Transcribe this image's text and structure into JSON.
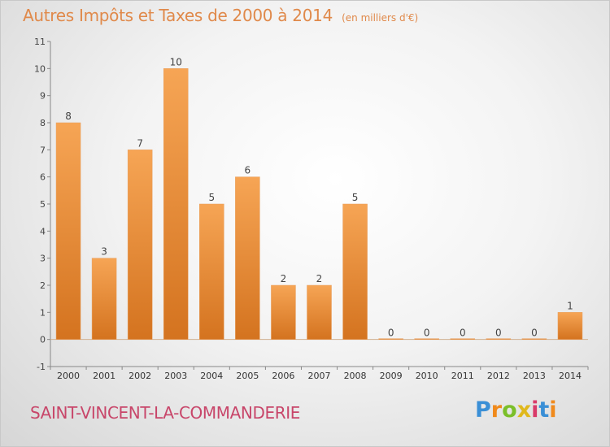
{
  "chart_data": {
    "type": "bar",
    "title": "Autres Impôts et Taxes de 2000 à 2014",
    "subtitle": "(en milliers d'€)",
    "xlabel": "",
    "ylabel": "",
    "categories": [
      "2000",
      "2001",
      "2002",
      "2003",
      "2004",
      "2005",
      "2006",
      "2007",
      "2008",
      "2009",
      "2010",
      "2011",
      "2012",
      "2013",
      "2014"
    ],
    "values": [
      8,
      3,
      7,
      10,
      5,
      6,
      2,
      2,
      5,
      0,
      0,
      0,
      0,
      0,
      1
    ],
    "ylim": [
      -1,
      11
    ],
    "yticks": [
      -1,
      0,
      1,
      2,
      3,
      4,
      5,
      6,
      7,
      8,
      9,
      10,
      11
    ],
    "grid": false,
    "legend": "none",
    "bar_color": "#f09a45",
    "bar_color_dark": "#d87520"
  },
  "footer": {
    "commune": "SAINT-VINCENT-LA-COMMANDERIE",
    "logo_letters": [
      "P",
      "r",
      "o",
      "x",
      "i",
      "t",
      "i"
    ]
  }
}
